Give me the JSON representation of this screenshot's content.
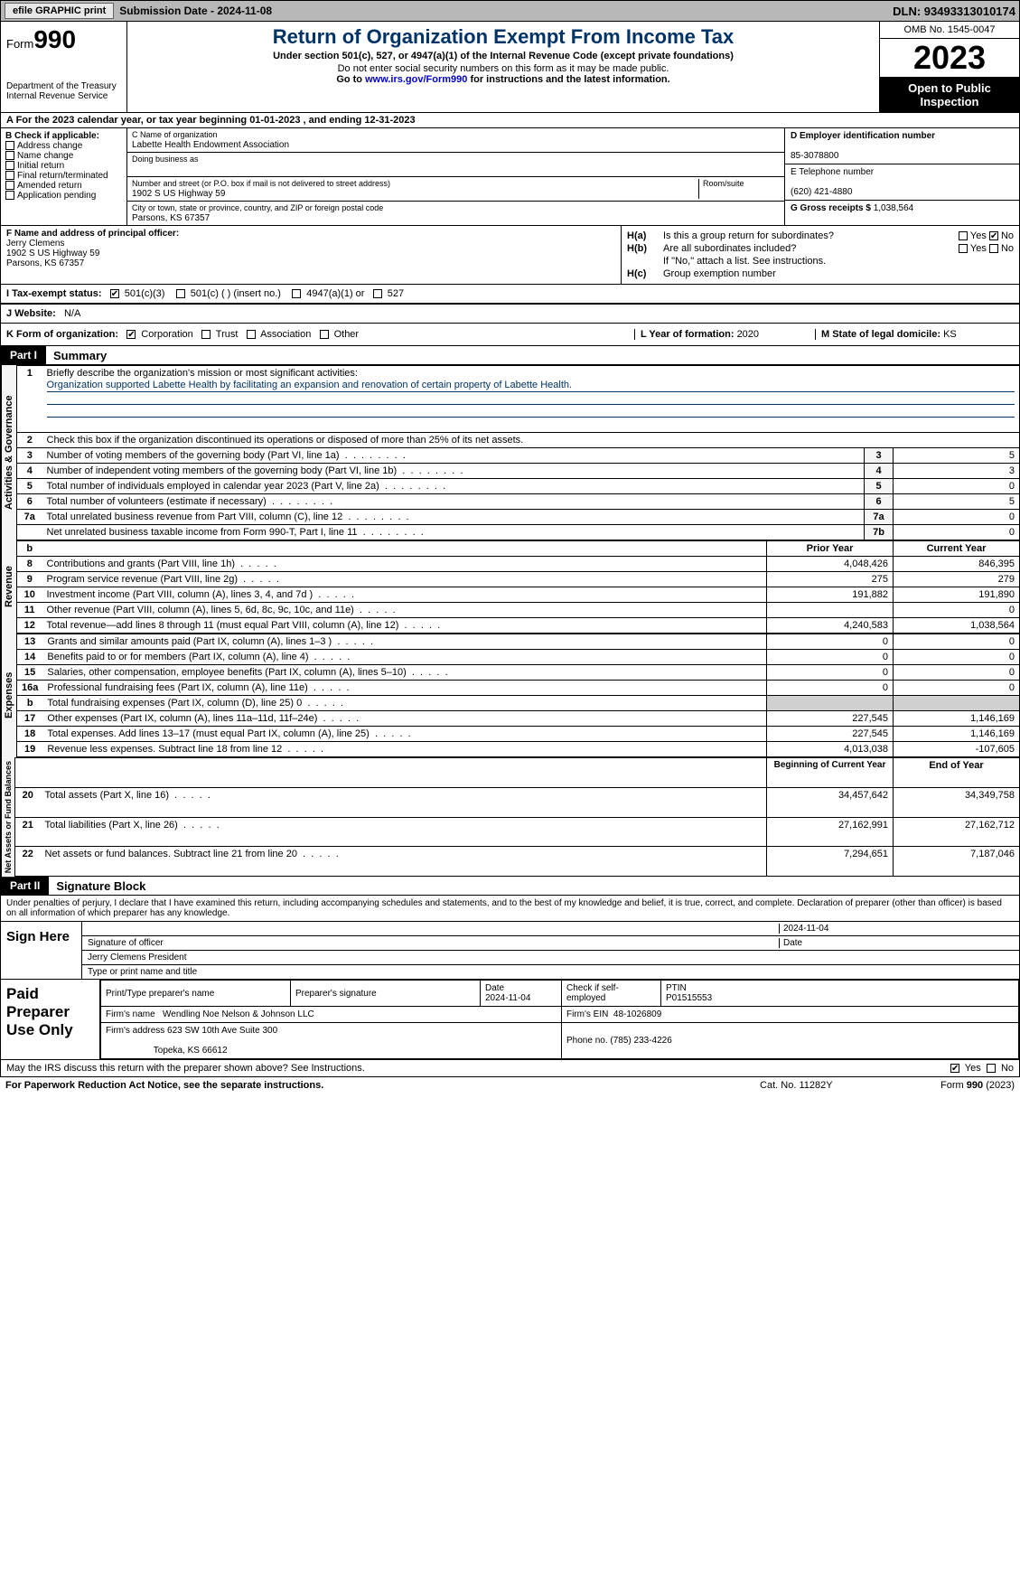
{
  "topbar": {
    "efile": "efile GRAPHIC print",
    "sub_label": "Submission Date - 2024-11-08",
    "dln": "DLN: 93493313010174"
  },
  "header": {
    "form_word": "Form",
    "form_no": "990",
    "dept": "Department of the Treasury Internal Revenue Service",
    "title": "Return of Organization Exempt From Income Tax",
    "sub1": "Under section 501(c), 527, or 4947(a)(1) of the Internal Revenue Code (except private foundations)",
    "sub2": "Do not enter social security numbers on this form as it may be made public.",
    "goto_pre": "Go to ",
    "goto_link": "www.irs.gov/Form990",
    "goto_post": " for instructions and the latest information.",
    "omb": "OMB No. 1545-0047",
    "year": "2023",
    "inspect": "Open to Public Inspection"
  },
  "row_a": "A For the 2023 calendar year, or tax year beginning 01-01-2023   , and ending 12-31-2023",
  "col_b": {
    "hdr": "B Check if applicable:",
    "opts": [
      "Address change",
      "Name change",
      "Initial return",
      "Final return/terminated",
      "Amended return",
      "Application pending"
    ]
  },
  "col_c": {
    "name_lbl": "C Name of organization",
    "name": "Labette Health Endowment Association",
    "dba_lbl": "Doing business as",
    "addr_lbl": "Number and street (or P.O. box if mail is not delivered to street address)",
    "room_lbl": "Room/suite",
    "addr": "1902 S US Highway 59",
    "city_lbl": "City or town, state or province, country, and ZIP or foreign postal code",
    "city": "Parsons, KS  67357"
  },
  "col_d": {
    "ein_lbl": "D Employer identification number",
    "ein": "85-3078800",
    "tel_lbl": "E Telephone number",
    "tel": "(620) 421-4880",
    "gross_lbl": "G Gross receipts $ ",
    "gross": "1,038,564"
  },
  "row_f": {
    "lbl": "F  Name and address of principal officer:",
    "name": "Jerry Clemens",
    "addr1": "1902 S US Highway 59",
    "addr2": "Parsons, KS  67357"
  },
  "row_h": {
    "ha_lbl": "H(a)",
    "ha_q": "Is this a group return for subordinates?",
    "hb_lbl": "H(b)",
    "hb_q": "Are all subordinates included?",
    "hb_note": "If \"No,\" attach a list. See instructions.",
    "hc_lbl": "H(c)",
    "hc_q": "Group exemption number",
    "yes": "Yes",
    "no": "No"
  },
  "row_i": {
    "lbl": "I  Tax-exempt status:",
    "o1": "501(c)(3)",
    "o2": "501(c) (  ) (insert no.)",
    "o3": "4947(a)(1) or",
    "o4": "527"
  },
  "row_j": {
    "lbl": "J  Website:",
    "val": "N/A"
  },
  "row_k": {
    "lbl": "K Form of organization:",
    "o1": "Corporation",
    "o2": "Trust",
    "o3": "Association",
    "o4": "Other",
    "l_lbl": "L Year of formation: ",
    "l_val": "2020",
    "m_lbl": "M State of legal domicile: ",
    "m_val": "KS"
  },
  "part1": {
    "hdr": "Part I",
    "title": "Summary"
  },
  "summary": {
    "l1_lbl": "Briefly describe the organization's mission or most significant activities:",
    "l1_val": "Organization supported Labette Health by facilitating an expansion and renovation of certain property of Labette Health.",
    "l2": "Check this box      if the organization discontinued its operations or disposed of more than 25% of its net assets.",
    "rows_gov": [
      {
        "n": "3",
        "d": "Number of voting members of the governing body (Part VI, line 1a)",
        "b": "3",
        "v": "5"
      },
      {
        "n": "4",
        "d": "Number of independent voting members of the governing body (Part VI, line 1b)",
        "b": "4",
        "v": "3"
      },
      {
        "n": "5",
        "d": "Total number of individuals employed in calendar year 2023 (Part V, line 2a)",
        "b": "5",
        "v": "0"
      },
      {
        "n": "6",
        "d": "Total number of volunteers (estimate if necessary)",
        "b": "6",
        "v": "5"
      },
      {
        "n": "7a",
        "d": "Total unrelated business revenue from Part VIII, column (C), line 12",
        "b": "7a",
        "v": "0"
      },
      {
        "n": "",
        "d": "Net unrelated business taxable income from Form 990-T, Part I, line 11",
        "b": "7b",
        "v": "0"
      }
    ],
    "hdr_prior": "Prior Year",
    "hdr_curr": "Current Year",
    "rows_rev": [
      {
        "n": "8",
        "d": "Contributions and grants (Part VIII, line 1h)",
        "p": "4,048,426",
        "c": "846,395"
      },
      {
        "n": "9",
        "d": "Program service revenue (Part VIII, line 2g)",
        "p": "275",
        "c": "279"
      },
      {
        "n": "10",
        "d": "Investment income (Part VIII, column (A), lines 3, 4, and 7d )",
        "p": "191,882",
        "c": "191,890"
      },
      {
        "n": "11",
        "d": "Other revenue (Part VIII, column (A), lines 5, 6d, 8c, 9c, 10c, and 11e)",
        "p": "",
        "c": "0"
      },
      {
        "n": "12",
        "d": "Total revenue—add lines 8 through 11 (must equal Part VIII, column (A), line 12)",
        "p": "4,240,583",
        "c": "1,038,564"
      }
    ],
    "rows_exp": [
      {
        "n": "13",
        "d": "Grants and similar amounts paid (Part IX, column (A), lines 1–3 )",
        "p": "0",
        "c": "0"
      },
      {
        "n": "14",
        "d": "Benefits paid to or for members (Part IX, column (A), line 4)",
        "p": "0",
        "c": "0"
      },
      {
        "n": "15",
        "d": "Salaries, other compensation, employee benefits (Part IX, column (A), lines 5–10)",
        "p": "0",
        "c": "0"
      },
      {
        "n": "16a",
        "d": "Professional fundraising fees (Part IX, column (A), line 11e)",
        "p": "0",
        "c": "0"
      },
      {
        "n": "b",
        "d": "Total fundraising expenses (Part IX, column (D), line 25) 0",
        "p": "grey",
        "c": "grey"
      },
      {
        "n": "17",
        "d": "Other expenses (Part IX, column (A), lines 11a–11d, 11f–24e)",
        "p": "227,545",
        "c": "1,146,169"
      },
      {
        "n": "18",
        "d": "Total expenses. Add lines 13–17 (must equal Part IX, column (A), line 25)",
        "p": "227,545",
        "c": "1,146,169"
      },
      {
        "n": "19",
        "d": "Revenue less expenses. Subtract line 18 from line 12",
        "p": "4,013,038",
        "c": "-107,605"
      }
    ],
    "hdr_beg": "Beginning of Current Year",
    "hdr_end": "End of Year",
    "rows_net": [
      {
        "n": "20",
        "d": "Total assets (Part X, line 16)",
        "p": "34,457,642",
        "c": "34,349,758"
      },
      {
        "n": "21",
        "d": "Total liabilities (Part X, line 26)",
        "p": "27,162,991",
        "c": "27,162,712"
      },
      {
        "n": "22",
        "d": "Net assets or fund balances. Subtract line 21 from line 20",
        "p": "7,294,651",
        "c": "7,187,046"
      }
    ]
  },
  "vert": {
    "gov": "Activities & Governance",
    "rev": "Revenue",
    "exp": "Expenses",
    "net": "Net Assets or Fund Balances"
  },
  "part2": {
    "hdr": "Part II",
    "title": "Signature Block"
  },
  "sig": {
    "penalty": "Under penalties of perjury, I declare that I have examined this return, including accompanying schedules and statements, and to the best of my knowledge and belief, it is true, correct, and complete. Declaration of preparer (other than officer) is based on all information of which preparer has any knowledge.",
    "sign_here": "Sign Here",
    "sig_of": "Signature of officer",
    "date_lbl": "Date",
    "date_val": "2024-11-04",
    "officer": "Jerry Clemens  President",
    "type_name": "Type or print name and title",
    "paid": "Paid Preparer Use Only",
    "pt_name_lbl": "Print/Type preparer's name",
    "pp_sig": "Preparer's signature",
    "pp_date_lbl": "Date",
    "pp_date": "2024-11-04",
    "pp_chk": "Check        if self-employed",
    "ptin_lbl": "PTIN",
    "ptin": "P01515553",
    "firm_name_lbl": "Firm's name",
    "firm_name": "Wendling Noe Nelson & Johnson LLC",
    "firm_ein_lbl": "Firm's EIN",
    "firm_ein": "48-1026809",
    "firm_addr_lbl": "Firm's address",
    "firm_addr1": "623 SW 10th Ave Suite 300",
    "firm_addr2": "Topeka, KS  66612",
    "phone_lbl": "Phone no.",
    "phone": "(785) 233-4226"
  },
  "footer": {
    "discuss": "May the IRS discuss this return with the preparer shown above? See Instructions.",
    "yes": "Yes",
    "no": "No",
    "paperwork": "For Paperwork Reduction Act Notice, see the separate instructions.",
    "cat": "Cat. No. 11282Y",
    "form": "Form 990 (2023)"
  }
}
